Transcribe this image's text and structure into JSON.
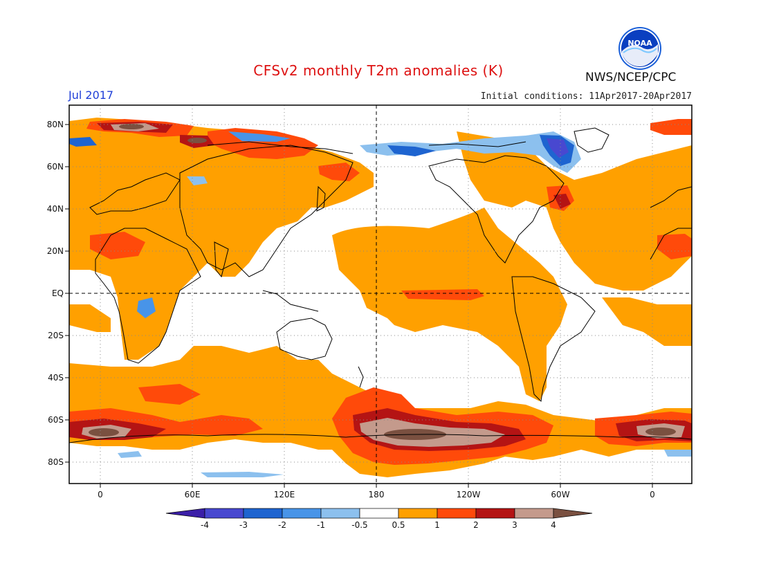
{
  "header": {
    "title": "CFSv2 monthly T2m anomalies (K)",
    "month": "Jul 2017",
    "initial_conditions": "Initial conditions: 11Apr2017-20Apr2017",
    "agency": "NWS/NCEP/CPC",
    "logo": {
      "icon": "noaa-logo-icon",
      "text": "NOAA"
    }
  },
  "map": {
    "lat_labels": [
      "80N",
      "60N",
      "40N",
      "20N",
      "EQ",
      "20S",
      "40S",
      "60S",
      "80S"
    ],
    "lon_labels": [
      "0",
      "60E",
      "120E",
      "180",
      "120W",
      "60W",
      "0"
    ]
  },
  "colorbar": {
    "labels": [
      "-4",
      "-3",
      "-2",
      "-1",
      "-0.5",
      "0.5",
      "1",
      "2",
      "3",
      "4"
    ],
    "colors": [
      "#3b1fa8",
      "#4848d0",
      "#1e64d0",
      "#4894e8",
      "#8cc0ee",
      "#ffffff",
      "#ffa000",
      "#ff4a0a",
      "#b41414",
      "#c49a8c",
      "#7a5040"
    ]
  }
}
